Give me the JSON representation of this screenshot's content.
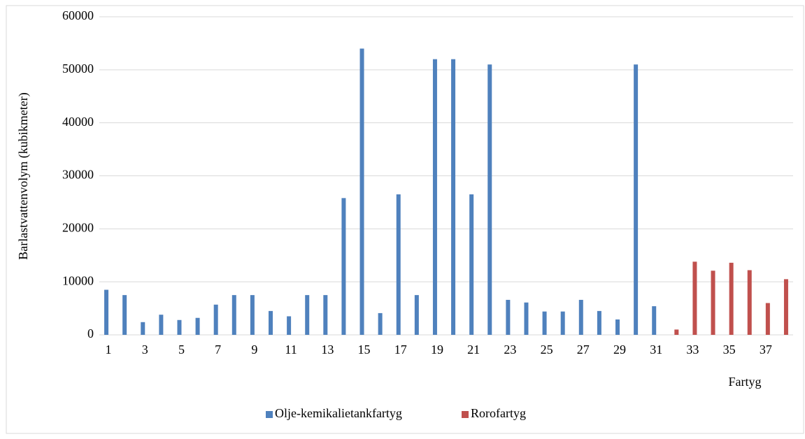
{
  "chart_data": {
    "type": "bar",
    "x_label": "Fartyg",
    "y_label": "Barlastvattenvolym (kubikmeter)",
    "categories": [
      1,
      null,
      3,
      null,
      5,
      null,
      7,
      null,
      9,
      null,
      11,
      null,
      13,
      null,
      15,
      null,
      17,
      null,
      19,
      null,
      21,
      null,
      23,
      null,
      25,
      null,
      27,
      null,
      29,
      null,
      31,
      null,
      33,
      null,
      35,
      null,
      37,
      null
    ],
    "series": [
      {
        "name": "Olje-kemikalietankfartyg",
        "color": "#4f81bd",
        "values": [
          8500,
          7500,
          2400,
          3800,
          2800,
          3200,
          5700,
          7500,
          7500,
          4500,
          3500,
          7500,
          7500,
          25800,
          54000,
          4100,
          26500,
          7500,
          52000,
          52000,
          26500,
          51000,
          6600,
          6100,
          4400,
          4400,
          6600,
          4500,
          2900,
          51000,
          5400,
          null,
          null,
          null,
          null,
          null,
          null,
          null
        ]
      },
      {
        "name": "Rorofartyg",
        "color": "#c0504d",
        "values": [
          null,
          null,
          null,
          null,
          null,
          null,
          null,
          null,
          null,
          null,
          null,
          null,
          null,
          null,
          null,
          null,
          null,
          null,
          null,
          null,
          null,
          null,
          null,
          null,
          null,
          null,
          null,
          null,
          null,
          null,
          null,
          1000,
          13800,
          12100,
          13600,
          12200,
          6000,
          10500
        ]
      }
    ],
    "ylim": [
      0,
      60000
    ],
    "yticks": [
      0,
      10000,
      20000,
      30000,
      40000,
      50000,
      60000
    ],
    "grid": true,
    "legend": "bottom"
  }
}
